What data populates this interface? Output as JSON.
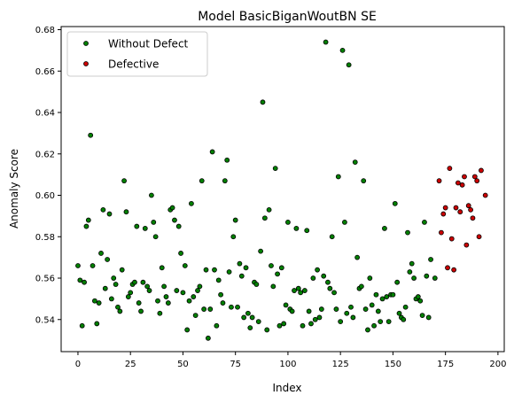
{
  "chart_data": {
    "type": "scatter",
    "title": "Model BasicBiganWoutBN SE",
    "xlabel": "Index",
    "ylabel": "Anomaly Score",
    "xlim": [
      -8,
      203
    ],
    "ylim": [
      0.5245,
      0.6815
    ],
    "xticks": [
      0,
      25,
      50,
      75,
      100,
      125,
      150,
      175,
      200
    ],
    "yticks": [
      0.54,
      0.56,
      0.58,
      0.6,
      0.62,
      0.64,
      0.66,
      0.68
    ],
    "grid": false,
    "legend_position": "top-left",
    "series": [
      {
        "name": "Without Defect",
        "color": "#008000",
        "points": [
          [
            0,
            0.566
          ],
          [
            1,
            0.559
          ],
          [
            2,
            0.537
          ],
          [
            3,
            0.558
          ],
          [
            4,
            0.585
          ],
          [
            5,
            0.588
          ],
          [
            6,
            0.629
          ],
          [
            7,
            0.566
          ],
          [
            8,
            0.549
          ],
          [
            9,
            0.538
          ],
          [
            10,
            0.548
          ],
          [
            11,
            0.572
          ],
          [
            12,
            0.593
          ],
          [
            13,
            0.555
          ],
          [
            14,
            0.569
          ],
          [
            15,
            0.591
          ],
          [
            16,
            0.55
          ],
          [
            17,
            0.56
          ],
          [
            18,
            0.557
          ],
          [
            19,
            0.546
          ],
          [
            20,
            0.544
          ],
          [
            21,
            0.564
          ],
          [
            22,
            0.607
          ],
          [
            23,
            0.592
          ],
          [
            24,
            0.551
          ],
          [
            25,
            0.553
          ],
          [
            26,
            0.557
          ],
          [
            27,
            0.558
          ],
          [
            28,
            0.585
          ],
          [
            29,
            0.548
          ],
          [
            30,
            0.544
          ],
          [
            31,
            0.558
          ],
          [
            32,
            0.584
          ],
          [
            33,
            0.556
          ],
          [
            34,
            0.554
          ],
          [
            35,
            0.6
          ],
          [
            36,
            0.587
          ],
          [
            37,
            0.58
          ],
          [
            38,
            0.549
          ],
          [
            39,
            0.543
          ],
          [
            40,
            0.565
          ],
          [
            41,
            0.556
          ],
          [
            42,
            0.551
          ],
          [
            43,
            0.548
          ],
          [
            44,
            0.593
          ],
          [
            45,
            0.594
          ],
          [
            46,
            0.588
          ],
          [
            47,
            0.554
          ],
          [
            48,
            0.585
          ],
          [
            49,
            0.572
          ],
          [
            50,
            0.553
          ],
          [
            51,
            0.566
          ],
          [
            52,
            0.535
          ],
          [
            53,
            0.549
          ],
          [
            54,
            0.596
          ],
          [
            55,
            0.551
          ],
          [
            56,
            0.542
          ],
          [
            57,
            0.554
          ],
          [
            58,
            0.556
          ],
          [
            59,
            0.607
          ],
          [
            60,
            0.545
          ],
          [
            61,
            0.564
          ],
          [
            62,
            0.531
          ],
          [
            63,
            0.545
          ],
          [
            64,
            0.621
          ],
          [
            65,
            0.564
          ],
          [
            66,
            0.537
          ],
          [
            67,
            0.559
          ],
          [
            68,
            0.552
          ],
          [
            69,
            0.548
          ],
          [
            70,
            0.607
          ],
          [
            71,
            0.617
          ],
          [
            72,
            0.563
          ],
          [
            73,
            0.546
          ],
          [
            74,
            0.58
          ],
          [
            75,
            0.588
          ],
          [
            76,
            0.546
          ],
          [
            77,
            0.567
          ],
          [
            78,
            0.561
          ],
          [
            79,
            0.541
          ],
          [
            80,
            0.565
          ],
          [
            81,
            0.543
          ],
          [
            82,
            0.536
          ],
          [
            83,
            0.541
          ],
          [
            84,
            0.558
          ],
          [
            85,
            0.557
          ],
          [
            86,
            0.539
          ],
          [
            87,
            0.573
          ],
          [
            88,
            0.645
          ],
          [
            89,
            0.589
          ],
          [
            90,
            0.535
          ],
          [
            91,
            0.593
          ],
          [
            92,
            0.566
          ],
          [
            93,
            0.556
          ],
          [
            94,
            0.613
          ],
          [
            95,
            0.562
          ],
          [
            96,
            0.537
          ],
          [
            97,
            0.565
          ],
          [
            98,
            0.538
          ],
          [
            99,
            0.547
          ],
          [
            100,
            0.587
          ],
          [
            101,
            0.545
          ],
          [
            102,
            0.544
          ],
          [
            103,
            0.554
          ],
          [
            104,
            0.584
          ],
          [
            105,
            0.555
          ],
          [
            106,
            0.553
          ],
          [
            107,
            0.537
          ],
          [
            108,
            0.554
          ],
          [
            109,
            0.583
          ],
          [
            110,
            0.544
          ],
          [
            111,
            0.538
          ],
          [
            112,
            0.56
          ],
          [
            113,
            0.54
          ],
          [
            114,
            0.564
          ],
          [
            115,
            0.541
          ],
          [
            116,
            0.545
          ],
          [
            117,
            0.561
          ],
          [
            118,
            0.674
          ],
          [
            119,
            0.558
          ],
          [
            120,
            0.555
          ],
          [
            121,
            0.58
          ],
          [
            122,
            0.553
          ],
          [
            123,
            0.545
          ],
          [
            124,
            0.609
          ],
          [
            125,
            0.539
          ],
          [
            126,
            0.67
          ],
          [
            127,
            0.587
          ],
          [
            128,
            0.543
          ],
          [
            129,
            0.663
          ],
          [
            130,
            0.546
          ],
          [
            131,
            0.541
          ],
          [
            132,
            0.616
          ],
          [
            133,
            0.57
          ],
          [
            134,
            0.555
          ],
          [
            135,
            0.556
          ],
          [
            136,
            0.607
          ],
          [
            137,
            0.545
          ],
          [
            138,
            0.535
          ],
          [
            139,
            0.56
          ],
          [
            140,
            0.547
          ],
          [
            141,
            0.537
          ],
          [
            142,
            0.552
          ],
          [
            143,
            0.544
          ],
          [
            144,
            0.539
          ],
          [
            145,
            0.55
          ],
          [
            146,
            0.584
          ],
          [
            147,
            0.551
          ],
          [
            148,
            0.539
          ],
          [
            149,
            0.552
          ],
          [
            150,
            0.552
          ],
          [
            151,
            0.596
          ],
          [
            152,
            0.558
          ],
          [
            153,
            0.543
          ],
          [
            154,
            0.541
          ],
          [
            155,
            0.54
          ],
          [
            156,
            0.546
          ],
          [
            157,
            0.582
          ],
          [
            158,
            0.563
          ],
          [
            159,
            0.567
          ],
          [
            160,
            0.56
          ],
          [
            161,
            0.55
          ],
          [
            162,
            0.551
          ],
          [
            163,
            0.549
          ],
          [
            164,
            0.542
          ],
          [
            165,
            0.587
          ],
          [
            166,
            0.561
          ],
          [
            167,
            0.541
          ],
          [
            168,
            0.569
          ],
          [
            170,
            0.56
          ]
        ]
      },
      {
        "name": "Defective",
        "color": "#cc0000",
        "points": [
          [
            172,
            0.607
          ],
          [
            173,
            0.582
          ],
          [
            174,
            0.591
          ],
          [
            175,
            0.594
          ],
          [
            176,
            0.565
          ],
          [
            177,
            0.613
          ],
          [
            178,
            0.579
          ],
          [
            179,
            0.564
          ],
          [
            180,
            0.594
          ],
          [
            181,
            0.606
          ],
          [
            182,
            0.592
          ],
          [
            183,
            0.605
          ],
          [
            184,
            0.609
          ],
          [
            185,
            0.576
          ],
          [
            186,
            0.595
          ],
          [
            187,
            0.593
          ],
          [
            188,
            0.589
          ],
          [
            189,
            0.609
          ],
          [
            190,
            0.607
          ],
          [
            191,
            0.58
          ],
          [
            192,
            0.612
          ],
          [
            194,
            0.6
          ]
        ]
      }
    ]
  }
}
